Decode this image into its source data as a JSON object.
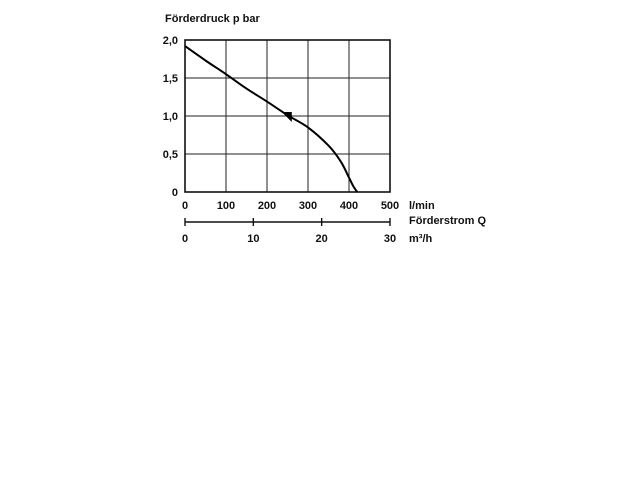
{
  "chart_data": {
    "type": "line",
    "ylabel": "Förderdruck p bar",
    "xlabel_primary_unit": "l/min",
    "xlabel_caption": "Förderstrom Q",
    "xlabel_secondary_unit": "m³/h",
    "y_ticks": [
      "2,0",
      "1,5",
      "1,0",
      "0,5",
      "0"
    ],
    "x_ticks_primary": [
      "0",
      "100",
      "200",
      "300",
      "400",
      "500"
    ],
    "x_ticks_secondary": [
      "0",
      "10",
      "20",
      "30"
    ],
    "xlim": [
      0,
      500
    ],
    "ylim": [
      0,
      2.0
    ],
    "secondary_xlim": [
      0,
      30
    ],
    "grid": true,
    "series": [
      {
        "x": [
          0,
          50,
          100,
          150,
          200,
          250,
          300,
          350,
          380,
          400,
          410,
          420
        ],
        "y": [
          1.92,
          1.73,
          1.55,
          1.36,
          1.19,
          1.01,
          0.85,
          0.61,
          0.4,
          0.19,
          0.08,
          0.0
        ]
      }
    ],
    "marker": {
      "type": "triangle",
      "x": 258,
      "y": 1.0
    }
  }
}
